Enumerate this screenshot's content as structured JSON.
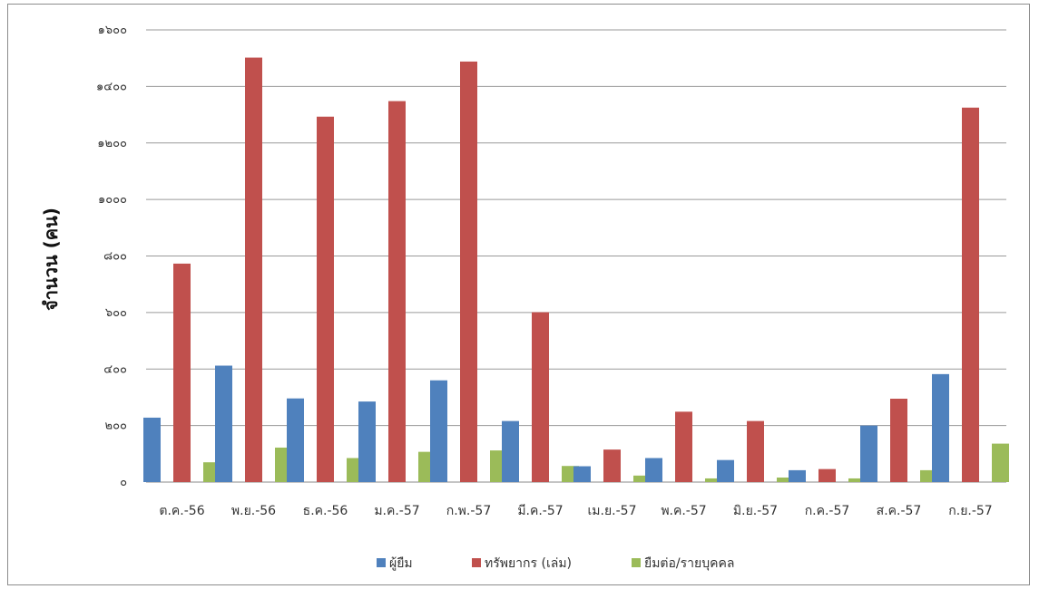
{
  "chart_data": {
    "type": "bar",
    "title": "",
    "xlabel": "",
    "ylabel": "จำนวน  (คน)",
    "ylim": [
      0,
      1600
    ],
    "yticks": [
      0,
      200,
      400,
      600,
      800,
      1000,
      1200,
      1400,
      1600
    ],
    "ytick_labels": [
      "๐",
      "๒๐๐",
      "๔๐๐",
      "๖๐๐",
      "๘๐๐",
      "๑๐๐๐",
      "๑๒๐๐",
      "๑๔๐๐",
      "๑๖๐๐"
    ],
    "grid": true,
    "legend_position": "bottom",
    "categories": [
      "ต.ค.-56",
      "พ.ย.-56",
      "ธ.ค.-56",
      "ม.ค.-57",
      "ก.พ.-57",
      "มี.ค.-57",
      "เม.ย.-57",
      "พ.ค.-57",
      "มิ.ย.-57",
      "ก.ค.-57",
      "ส.ค.-57",
      "ก.ย.-57"
    ],
    "series": [
      {
        "name": "ผู้ยืม",
        "color": "#4f81bd",
        "values": [
          228,
          412,
          296,
          285,
          360,
          216,
          56,
          85,
          78,
          42,
          200,
          382
        ]
      },
      {
        "name": "ทรัพยากร (เล่ม)",
        "color": "#c0504d",
        "values": [
          773,
          1502,
          1293,
          1348,
          1488,
          601,
          115,
          249,
          216,
          46,
          295,
          1325
        ]
      },
      {
        "name": "ยืมต่อ/รายบุคคล",
        "color": "#9bbb59",
        "values": [
          70,
          122,
          85,
          107,
          112,
          57,
          23,
          13,
          16,
          13,
          42,
          136
        ]
      }
    ]
  }
}
